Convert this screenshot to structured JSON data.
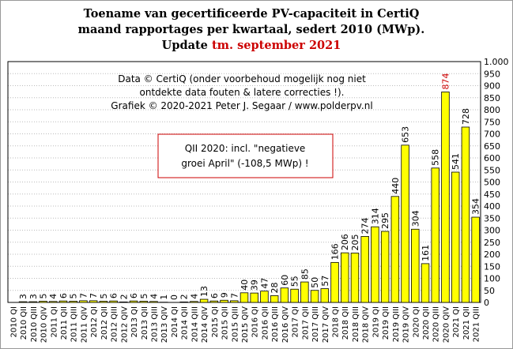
{
  "chart_data": {
    "type": "bar",
    "title": [
      "Toename van gecertificeerde PV-capaciteit in CertiQ",
      "maand rapportages per kwartaal, sedert 2010 (MWp)."
    ],
    "update_prefix": "Update",
    "update_date": "tm. september 2021",
    "update_color": "#cc0000",
    "notes": [
      "Data © CertiQ (onder voorbehoud mogelijk  nog niet",
      "ontdekte data fouten & latere correcties !).",
      "Grafiek  © 2020-2021  Peter J. Segaar / www.polderpv.nl"
    ],
    "box_notes": [
      "QII 2020: incl. \"negatieve",
      "groei April\"  (-108,5 MWp) !"
    ],
    "box_color": "#cc0000",
    "categories": [
      "2010 QI",
      "2010 QII",
      "2010 QIII",
      "2010 QIV",
      "2011 QI",
      "2011 QII",
      "2011 QIII",
      "2011 QIV",
      "2012 QI",
      "2012 QII",
      "2012 QIII",
      "2012 QIV",
      "2013 QI",
      "2013 QII",
      "2013 QIII",
      "2013 QIV",
      "2014 QI",
      "2014 QII",
      "2014 QIII",
      "2014 QIV",
      "2015 QI",
      "2015 QII",
      "2015 QIII",
      "2015 QIV",
      "2016 QI",
      "2016 QII",
      "2016 QIII",
      "2016 QIV",
      "2017 QI",
      "2017 QII",
      "2017 QIII",
      "2017 QIV",
      "2018 QI",
      "2018 QII",
      "2018 QIII",
      "2018 QIV",
      "2019 QI",
      "2019 QII",
      "2019 QIII",
      "2019 QIV",
      "2020 QI",
      "2020 QII",
      "2020 QIII",
      "2020 QIV",
      "2021 QI",
      "2021 QII",
      "2021 QIII"
    ],
    "values": [
      null,
      3,
      3,
      5,
      4,
      6,
      5,
      7,
      7,
      5,
      6,
      2,
      6,
      5,
      4,
      1,
      0,
      2,
      4,
      13,
      6,
      9,
      7,
      40,
      39,
      47,
      28,
      60,
      55,
      85,
      50,
      57,
      166,
      206,
      205,
      274,
      314,
      295,
      440,
      653,
      304,
      161,
      558,
      874,
      541,
      728,
      354
    ],
    "color": "#ffff00",
    "highlight_index": 43,
    "highlight_color": "#cc0000",
    "ylim": [
      0,
      1000
    ],
    "yticks": [
      0,
      50,
      100,
      150,
      200,
      250,
      300,
      350,
      400,
      450,
      500,
      550,
      600,
      650,
      700,
      750,
      800,
      850,
      900,
      950,
      {
        "value": 1000,
        "label": "1.000"
      }
    ],
    "grid": true
  }
}
